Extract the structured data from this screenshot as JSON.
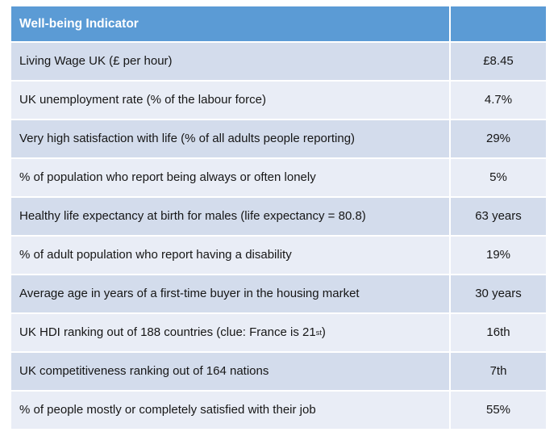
{
  "table": {
    "header": {
      "indicator_label": "Well-being Indicator",
      "value_label": ""
    },
    "rows": [
      {
        "indicator": "Living Wage UK (£ per hour)",
        "value": "£8.45"
      },
      {
        "indicator": "UK unemployment rate (% of the labour force)",
        "value": "4.7%"
      },
      {
        "indicator": "Very high satisfaction with life (% of all adults people reporting)",
        "value": "29%"
      },
      {
        "indicator": "% of population who report being always or often lonely",
        "value": "5%"
      },
      {
        "indicator": "Healthy life expectancy at birth for males (life expectancy = 80.8)",
        "value": "63 years"
      },
      {
        "indicator": "% of adult population who report having a disability",
        "value": "19%"
      },
      {
        "indicator": "Average age in years of a first-time buyer in the housing market",
        "value": "30 years"
      },
      {
        "indicator": "UK HDI ranking out of 188 countries (clue: France is 21",
        "indicator_sup": "st",
        "indicator_suffix": ")",
        "value": "16th"
      },
      {
        "indicator": "UK competitiveness ranking out of 164 nations",
        "value": "7th"
      },
      {
        "indicator": "% of people mostly or completely satisfied with their job",
        "value": "55%"
      }
    ],
    "colors": {
      "header_bg": "#5B9BD5",
      "row_dark": "#D3DCEC",
      "row_light": "#E9EDF6",
      "header_text": "#FFFFFF",
      "body_text": "#161616"
    }
  }
}
